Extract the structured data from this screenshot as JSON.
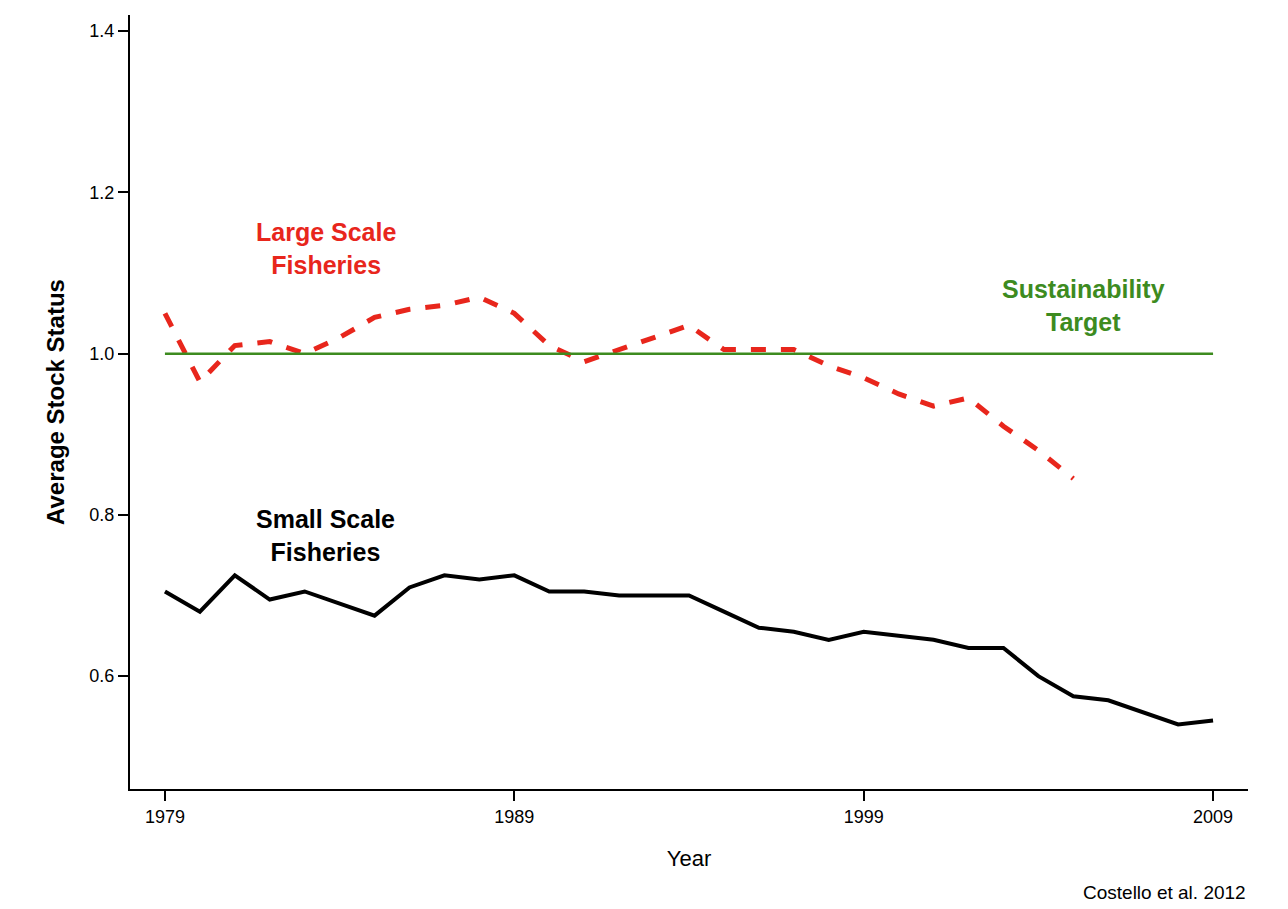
{
  "chart_data": {
    "type": "line",
    "x_label": "Year",
    "y_label": "Average Stock Status",
    "x": [
      1979,
      1980,
      1981,
      1982,
      1983,
      1984,
      1985,
      1986,
      1987,
      1988,
      1989,
      1990,
      1991,
      1992,
      1993,
      1994,
      1995,
      1996,
      1997,
      1998,
      1999,
      2000,
      2001,
      2002,
      2003,
      2004,
      2005,
      2006,
      2007,
      2008,
      2009
    ],
    "xlim": [
      1978,
      2010
    ],
    "xticks": [
      1979,
      1989,
      1999,
      2009
    ],
    "ylim": [
      0.46,
      1.42
    ],
    "yticks": [
      0.6,
      0.8,
      {
        "value": 1,
        "label": "1.0"
      },
      1.2,
      1.4
    ],
    "grid": false,
    "series": [
      {
        "name": "Large Scale Fisheries",
        "color": "#e8261c",
        "line_style": "dashed",
        "values": [
          1.05,
          0.965,
          1.01,
          1.015,
          1.0,
          1.02,
          1.045,
          1.055,
          1.06,
          1.07,
          1.05,
          1.01,
          0.99,
          1.005,
          1.02,
          1.035,
          1.005,
          1.005,
          1.005,
          0.985,
          0.97,
          0.95,
          0.935,
          0.945,
          0.91,
          0.88,
          0.845,
          null,
          null,
          null,
          null
        ]
      },
      {
        "name": "Small Scale Fisheries",
        "color": "#000000",
        "line_style": "solid",
        "values": [
          0.705,
          0.68,
          0.725,
          0.695,
          0.705,
          0.69,
          0.675,
          0.71,
          0.725,
          0.72,
          0.725,
          0.705,
          0.705,
          0.7,
          0.7,
          0.7,
          0.68,
          0.66,
          0.655,
          0.645,
          0.655,
          0.65,
          0.645,
          0.635,
          0.635,
          0.6,
          0.575,
          0.57,
          0.555,
          0.54,
          0.545
        ]
      },
      {
        "name": "Sustainability Target",
        "color": "#3d8b1f",
        "line_style": "solid",
        "values": [
          1,
          1,
          1,
          1,
          1,
          1,
          1,
          1,
          1,
          1,
          1,
          1,
          1,
          1,
          1,
          1,
          1,
          1,
          1,
          1,
          1,
          1,
          1,
          1,
          1,
          1,
          1,
          1,
          1,
          1,
          1
        ]
      }
    ],
    "annotations": [
      "Costello et al. 2012"
    ]
  }
}
